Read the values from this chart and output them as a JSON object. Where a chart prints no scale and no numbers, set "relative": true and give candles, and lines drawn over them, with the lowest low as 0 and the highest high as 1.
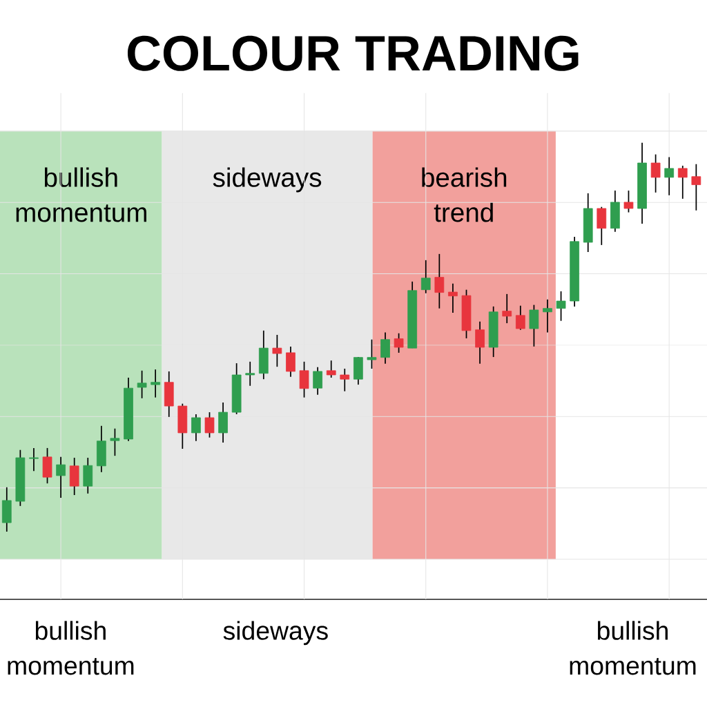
{
  "chart_data": {
    "type": "candlestick",
    "title": "COLOUR TRADING",
    "relative": true,
    "grid": true,
    "categories": [
      null,
      null,
      null,
      null,
      null,
      null,
      null,
      null,
      null,
      null,
      null,
      null,
      null,
      null,
      null,
      null,
      null,
      null,
      null,
      null,
      null,
      null,
      null,
      null,
      null,
      null,
      null,
      null,
      null,
      null,
      null,
      null,
      null,
      null,
      null,
      null,
      null,
      null,
      null,
      null,
      null,
      null,
      null,
      null,
      null,
      null,
      null,
      null,
      null,
      null,
      null,
      null
    ],
    "ohlc": [
      [
        0.023,
        0.114,
        0.0,
        0.08
      ],
      [
        0.078,
        0.21,
        0.066,
        0.19
      ],
      [
        0.188,
        0.215,
        0.156,
        0.19
      ],
      [
        0.192,
        0.215,
        0.124,
        0.14
      ],
      [
        0.144,
        0.192,
        0.087,
        0.172
      ],
      [
        0.169,
        0.19,
        0.094,
        0.117
      ],
      [
        0.117,
        0.19,
        0.098,
        0.17
      ],
      [
        0.169,
        0.272,
        0.153,
        0.233
      ],
      [
        0.234,
        0.265,
        0.195,
        0.24
      ],
      [
        0.238,
        0.396,
        0.233,
        0.369
      ],
      [
        0.371,
        0.414,
        0.343,
        0.382
      ],
      [
        0.378,
        0.417,
        0.345,
        0.384
      ],
      [
        0.384,
        0.412,
        0.295,
        0.323
      ],
      [
        0.323,
        0.329,
        0.213,
        0.254
      ],
      [
        0.254,
        0.302,
        0.233,
        0.293
      ],
      [
        0.293,
        0.307,
        0.242,
        0.254
      ],
      [
        0.254,
        0.332,
        0.229,
        0.307
      ],
      [
        0.307,
        0.433,
        0.302,
        0.403
      ],
      [
        0.403,
        0.437,
        0.375,
        0.407
      ],
      [
        0.407,
        0.517,
        0.392,
        0.472
      ],
      [
        0.472,
        0.506,
        0.424,
        0.458
      ],
      [
        0.46,
        0.476,
        0.398,
        0.412
      ],
      [
        0.414,
        0.437,
        0.345,
        0.368
      ],
      [
        0.369,
        0.423,
        0.352,
        0.412
      ],
      [
        0.414,
        0.44,
        0.396,
        0.403
      ],
      [
        0.403,
        0.419,
        0.361,
        0.392
      ],
      [
        0.392,
        0.449,
        0.378,
        0.448
      ],
      [
        0.442,
        0.494,
        0.419,
        0.448
      ],
      [
        0.448,
        0.512,
        0.432,
        0.494
      ],
      [
        0.496,
        0.51,
        0.46,
        0.474
      ],
      [
        0.472,
        0.643,
        0.472,
        0.62
      ],
      [
        0.622,
        0.698,
        0.613,
        0.652
      ],
      [
        0.654,
        0.714,
        0.574,
        0.615
      ],
      [
        0.616,
        0.638,
        0.563,
        0.606
      ],
      [
        0.607,
        0.622,
        0.497,
        0.517
      ],
      [
        0.519,
        0.54,
        0.432,
        0.474
      ],
      [
        0.474,
        0.579,
        0.449,
        0.565
      ],
      [
        0.567,
        0.611,
        0.536,
        0.554
      ],
      [
        0.556,
        0.581,
        0.519,
        0.522
      ],
      [
        0.522,
        0.583,
        0.476,
        0.57
      ],
      [
        0.565,
        0.597,
        0.512,
        0.574
      ],
      [
        0.574,
        0.618,
        0.542,
        0.593
      ],
      [
        0.593,
        0.758,
        0.579,
        0.746
      ],
      [
        0.744,
        0.87,
        0.719,
        0.831
      ],
      [
        0.831,
        0.835,
        0.737,
        0.78
      ],
      [
        0.78,
        0.877,
        0.771,
        0.847
      ],
      [
        0.847,
        0.877,
        0.821,
        0.831
      ],
      [
        0.831,
        1.0,
        0.792,
        0.948
      ],
      [
        0.948,
        0.97,
        0.872,
        0.911
      ],
      [
        0.911,
        0.963,
        0.865,
        0.934
      ],
      [
        0.934,
        0.941,
        0.856,
        0.911
      ],
      [
        0.913,
        0.945,
        0.826,
        0.892
      ]
    ],
    "colors": [
      "#2f9e4f",
      "#2f9e4f",
      "#2f9e4f",
      "#e8353d",
      "#2f9e4f",
      "#e8353d",
      "#2f9e4f",
      "#2f9e4f",
      "#2f9e4f",
      "#2f9e4f",
      "#2f9e4f",
      "#2f9e4f",
      "#e8353d",
      "#e8353d",
      "#2f9e4f",
      "#e8353d",
      "#2f9e4f",
      "#2f9e4f",
      "#2f9e4f",
      "#2f9e4f",
      "#e8353d",
      "#e8353d",
      "#e8353d",
      "#2f9e4f",
      "#e8353d",
      "#e8353d",
      "#2f9e4f",
      "#2f9e4f",
      "#2f9e4f",
      "#e8353d",
      "#2f9e4f",
      "#2f9e4f",
      "#e8353d",
      "#e8353d",
      "#e8353d",
      "#e8353d",
      "#2f9e4f",
      "#e8353d",
      "#e8353d",
      "#2f9e4f",
      "#2f9e4f",
      "#2f9e4f",
      "#2f9e4f",
      "#2f9e4f",
      "#e8353d",
      "#2f9e4f",
      "#e8353d",
      "#2f9e4f",
      "#e8353d",
      "#2f9e4f",
      "#e8353d",
      "#e8353d"
    ],
    "annotations": [
      "bullish momentum",
      "sideways",
      "bearish trend",
      "bullish momentum",
      "sideways",
      "bullish momentum"
    ]
  }
}
